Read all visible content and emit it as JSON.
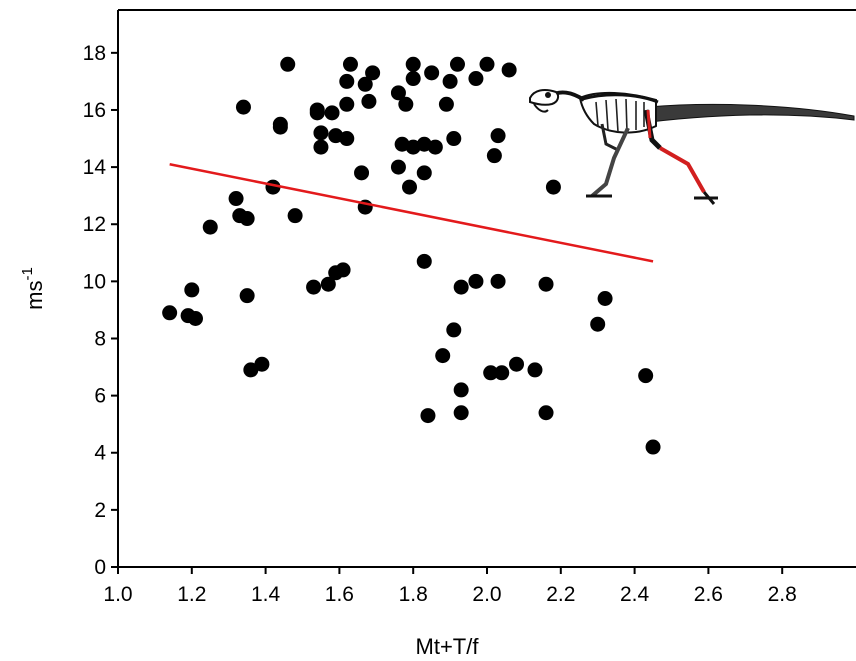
{
  "chart_data": {
    "type": "scatter",
    "xlabel": "Mt+T/f",
    "ylabel": "ms",
    "ylabel_superscript": "-1",
    "xlim": [
      1.0,
      3.0
    ],
    "ylim": [
      0,
      19.5
    ],
    "x_ticks": [
      "1.0",
      "1.2",
      "1.4",
      "1.6",
      "1.8",
      "2.0",
      "2.2",
      "2.4",
      "2.6",
      "2.8"
    ],
    "y_ticks": [
      "0",
      "2",
      "4",
      "6",
      "8",
      "10",
      "12",
      "14",
      "16",
      "18"
    ],
    "grid": false,
    "legend": "none",
    "colors": {
      "points": "#000000",
      "regression": "#e31a1c",
      "axes": "#000000"
    },
    "regression_line": {
      "x": [
        1.14,
        2.45
      ],
      "y": [
        14.1,
        10.7
      ]
    },
    "silhouette": {
      "name": "dinosaur-skeleton-icon",
      "position": "top-right"
    },
    "points": [
      {
        "x": 1.14,
        "y": 8.9
      },
      {
        "x": 1.19,
        "y": 8.8
      },
      {
        "x": 1.2,
        "y": 9.7
      },
      {
        "x": 1.21,
        "y": 8.7
      },
      {
        "x": 1.25,
        "y": 11.9
      },
      {
        "x": 1.32,
        "y": 12.9
      },
      {
        "x": 1.33,
        "y": 12.3
      },
      {
        "x": 1.34,
        "y": 16.1
      },
      {
        "x": 1.35,
        "y": 12.2
      },
      {
        "x": 1.35,
        "y": 9.5
      },
      {
        "x": 1.36,
        "y": 6.9
      },
      {
        "x": 1.39,
        "y": 7.1
      },
      {
        "x": 1.42,
        "y": 13.3
      },
      {
        "x": 1.44,
        "y": 15.5
      },
      {
        "x": 1.44,
        "y": 15.4
      },
      {
        "x": 1.46,
        "y": 17.6
      },
      {
        "x": 1.48,
        "y": 12.3
      },
      {
        "x": 1.53,
        "y": 9.8
      },
      {
        "x": 1.54,
        "y": 15.9
      },
      {
        "x": 1.54,
        "y": 16.0
      },
      {
        "x": 1.55,
        "y": 15.2
      },
      {
        "x": 1.55,
        "y": 14.7
      },
      {
        "x": 1.57,
        "y": 9.9
      },
      {
        "x": 1.58,
        "y": 15.9
      },
      {
        "x": 1.59,
        "y": 15.1
      },
      {
        "x": 1.59,
        "y": 10.3
      },
      {
        "x": 1.61,
        "y": 10.4
      },
      {
        "x": 1.62,
        "y": 17.0
      },
      {
        "x": 1.62,
        "y": 16.2
      },
      {
        "x": 1.62,
        "y": 15.0
      },
      {
        "x": 1.63,
        "y": 17.6
      },
      {
        "x": 1.66,
        "y": 13.8
      },
      {
        "x": 1.67,
        "y": 12.6
      },
      {
        "x": 1.67,
        "y": 16.9
      },
      {
        "x": 1.68,
        "y": 16.3
      },
      {
        "x": 1.69,
        "y": 17.3
      },
      {
        "x": 1.76,
        "y": 16.6
      },
      {
        "x": 1.76,
        "y": 14.0
      },
      {
        "x": 1.77,
        "y": 14.8
      },
      {
        "x": 1.78,
        "y": 16.2
      },
      {
        "x": 1.79,
        "y": 13.3
      },
      {
        "x": 1.8,
        "y": 17.6
      },
      {
        "x": 1.8,
        "y": 17.1
      },
      {
        "x": 1.8,
        "y": 14.7
      },
      {
        "x": 1.83,
        "y": 14.8
      },
      {
        "x": 1.83,
        "y": 13.8
      },
      {
        "x": 1.83,
        "y": 10.7
      },
      {
        "x": 1.84,
        "y": 5.3
      },
      {
        "x": 1.85,
        "y": 17.3
      },
      {
        "x": 1.86,
        "y": 14.7
      },
      {
        "x": 1.88,
        "y": 7.4
      },
      {
        "x": 1.89,
        "y": 16.2
      },
      {
        "x": 1.9,
        "y": 17.0
      },
      {
        "x": 1.91,
        "y": 15.0
      },
      {
        "x": 1.91,
        "y": 8.3
      },
      {
        "x": 1.92,
        "y": 17.6
      },
      {
        "x": 1.93,
        "y": 9.8
      },
      {
        "x": 1.93,
        "y": 6.2
      },
      {
        "x": 1.93,
        "y": 5.4
      },
      {
        "x": 1.97,
        "y": 17.1
      },
      {
        "x": 1.97,
        "y": 10.0
      },
      {
        "x": 2.0,
        "y": 17.6
      },
      {
        "x": 2.01,
        "y": 6.8
      },
      {
        "x": 2.02,
        "y": 14.4
      },
      {
        "x": 2.03,
        "y": 15.1
      },
      {
        "x": 2.03,
        "y": 10.0
      },
      {
        "x": 2.04,
        "y": 6.8
      },
      {
        "x": 2.06,
        "y": 17.4
      },
      {
        "x": 2.08,
        "y": 7.1
      },
      {
        "x": 2.13,
        "y": 6.9
      },
      {
        "x": 2.16,
        "y": 9.9
      },
      {
        "x": 2.16,
        "y": 5.4
      },
      {
        "x": 2.18,
        "y": 13.3
      },
      {
        "x": 2.3,
        "y": 8.5
      },
      {
        "x": 2.32,
        "y": 9.4
      },
      {
        "x": 2.43,
        "y": 6.7
      },
      {
        "x": 2.45,
        "y": 4.2
      }
    ]
  }
}
